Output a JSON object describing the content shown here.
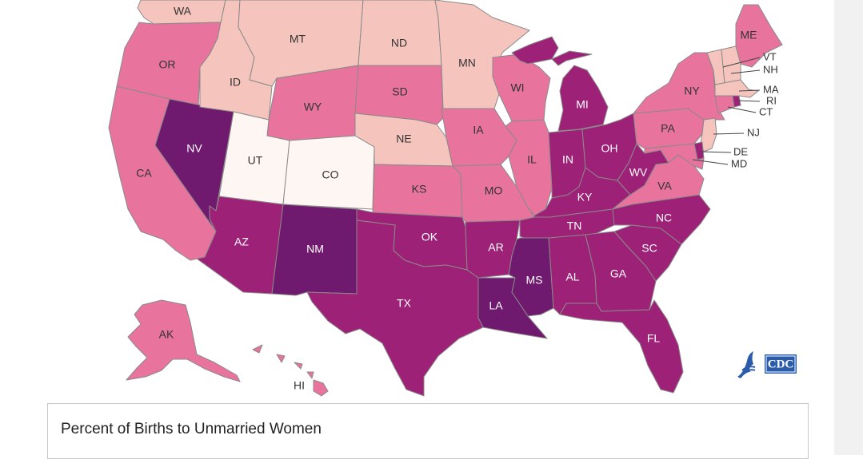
{
  "legend": {
    "title": "Percent of Births to Unmarried Women"
  },
  "colors": {
    "c1": "#fef6f3",
    "c2": "#f5c5bd",
    "c3": "#e8739d",
    "c4": "#9e2178",
    "c5": "#701a6f",
    "border": "#8a8a8a",
    "label_light": "#ffffff",
    "label_dark": "#333333"
  },
  "states": {
    "WA": "c2",
    "OR": "c3",
    "CA": "c3",
    "NV": "c5",
    "ID": "c2",
    "MT": "c2",
    "WY": "c3",
    "UT": "c1",
    "AZ": "c4",
    "CO": "c1",
    "NM": "c5",
    "ND": "c2",
    "SD": "c3",
    "NE": "c2",
    "KS": "c3",
    "OK": "c4",
    "TX": "c4",
    "MN": "c2",
    "IA": "c3",
    "MO": "c3",
    "AR": "c4",
    "LA": "c5",
    "WI": "c3",
    "IL": "c3",
    "MI": "c4",
    "IN": "c4",
    "OH": "c4",
    "KY": "c4",
    "TN": "c4",
    "MS": "c5",
    "AL": "c4",
    "GA": "c4",
    "FL": "c4",
    "SC": "c4",
    "NC": "c4",
    "VA": "c3",
    "WV": "c4",
    "PA": "c3",
    "NY": "c3",
    "ME": "c3",
    "VT": "c2",
    "NH": "c2",
    "MA": "c2",
    "RI": "c4",
    "CT": "c3",
    "NJ": "c2",
    "DE": "c4",
    "MD": "c3",
    "AK": "c3",
    "HI": "c3"
  },
  "labels": {
    "WA": "WA",
    "OR": "OR",
    "CA": "CA",
    "NV": "NV",
    "ID": "ID",
    "MT": "MT",
    "WY": "WY",
    "UT": "UT",
    "AZ": "AZ",
    "CO": "CO",
    "NM": "NM",
    "ND": "ND",
    "SD": "SD",
    "NE": "NE",
    "KS": "KS",
    "OK": "OK",
    "TX": "TX",
    "MN": "MN",
    "IA": "IA",
    "MO": "MO",
    "AR": "AR",
    "LA": "LA",
    "WI": "WI",
    "IL": "IL",
    "MI": "MI",
    "IN": "IN",
    "OH": "OH",
    "KY": "KY",
    "TN": "TN",
    "MS": "MS",
    "AL": "AL",
    "GA": "GA",
    "FL": "FL",
    "SC": "SC",
    "NC": "NC",
    "VA": "VA",
    "WV": "WV",
    "PA": "PA",
    "NY": "NY",
    "ME": "ME",
    "VT": "VT",
    "NH": "NH",
    "MA": "MA",
    "RI": "RI",
    "CT": "CT",
    "NJ": "NJ",
    "DE": "DE",
    "MD": "MD",
    "AK": "AK",
    "HI": "HI"
  },
  "logo": {
    "text": "CDC"
  }
}
